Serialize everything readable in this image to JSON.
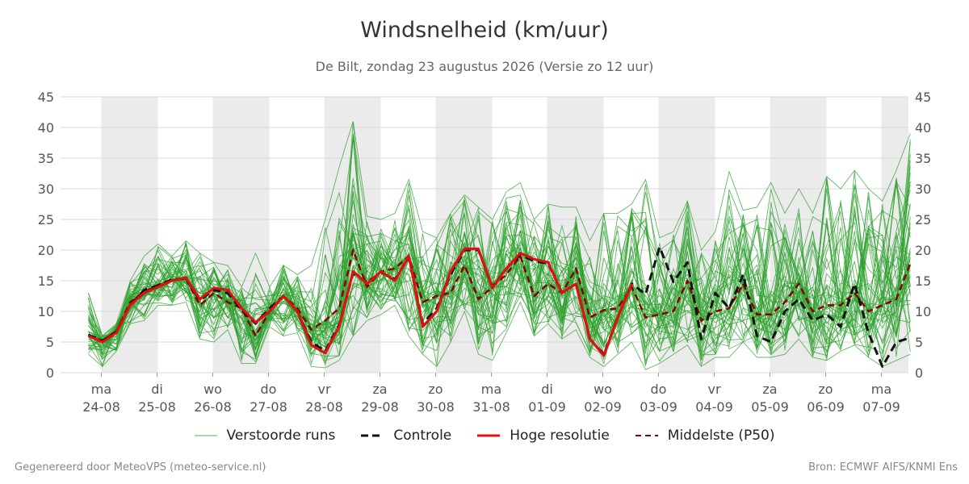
{
  "header": {
    "title": "Windsnelheid (km/uur)",
    "subtitle": "De Bilt, zondag 23 augustus 2026 (Versie zo 12 uur)"
  },
  "footer": {
    "left": "Gegenereerd door MeteoVPS (meteo-service.nl)",
    "right": "Bron: ECMWF AIFS/KNMI Ens"
  },
  "legend": [
    {
      "label": "Verstoorde runs",
      "style": "thin-green"
    },
    {
      "label": "Controle",
      "style": "black-dashed"
    },
    {
      "label": "Hoge resolutie",
      "style": "red-solid"
    },
    {
      "label": "Middelste (P50)",
      "style": "darkred-dashed"
    }
  ],
  "colors": {
    "ensemble": "#2ca02c",
    "control": "#111111",
    "hires": "#dd1111",
    "median": "#8b0000",
    "shade": "#ebebeb",
    "grid": "#d9d9d9"
  },
  "chart_data": {
    "type": "line",
    "x_unit": "6-hourly steps from 23-08 18:00",
    "ylim": [
      0,
      45
    ],
    "yticks": [
      0,
      5,
      10,
      15,
      20,
      25,
      30,
      35,
      40,
      45
    ],
    "day_labels": [
      {
        "day": "ma",
        "date": "24-08"
      },
      {
        "day": "di",
        "date": "25-08"
      },
      {
        "day": "wo",
        "date": "26-08"
      },
      {
        "day": "do",
        "date": "27-08"
      },
      {
        "day": "vr",
        "date": "28-08"
      },
      {
        "day": "za",
        "date": "29-08"
      },
      {
        "day": "zo",
        "date": "30-08"
      },
      {
        "day": "ma",
        "date": "31-08"
      },
      {
        "day": "di",
        "date": "01-09"
      },
      {
        "day": "wo",
        "date": "02-09"
      },
      {
        "day": "do",
        "date": "03-09"
      },
      {
        "day": "vr",
        "date": "04-09"
      },
      {
        "day": "za",
        "date": "05-09"
      },
      {
        "day": "zo",
        "date": "06-09"
      },
      {
        "day": "ma",
        "date": "07-09"
      }
    ],
    "series": [
      {
        "name": "Hoge resolutie",
        "values": [
          6.0,
          5.0,
          6.5,
          11.0,
          13.0,
          14.0,
          15.0,
          15.5,
          12.0,
          13.8,
          13.5,
          10.5,
          8.2,
          10.0,
          12.5,
          10.0,
          4.5,
          3.2,
          7.5,
          16.5,
          14.5,
          16.5,
          15.0,
          19.0,
          7.5,
          10.0,
          16.5,
          20.2,
          20.2,
          13.8,
          17.0,
          19.5,
          18.5,
          18.0,
          13.0,
          14.5,
          5.5,
          2.8,
          9.0,
          14.5
        ]
      },
      {
        "name": "Controle",
        "values": [
          6.2,
          5.2,
          6.7,
          11.0,
          13.5,
          14.2,
          15.2,
          15.3,
          11.8,
          13.5,
          13.0,
          10.2,
          8.0,
          10.5,
          12.5,
          10.0,
          5.0,
          3.5,
          7.8,
          16.2,
          14.7,
          16.4,
          15.2,
          18.8,
          8.0,
          10.5,
          16.0,
          20.0,
          20.0,
          14.0,
          17.0,
          19.2,
          18.2,
          17.8,
          13.0,
          14.5,
          5.5,
          3.0,
          9.0,
          14.5,
          12.8,
          20.5,
          14.8,
          18.0,
          5.5,
          13.0,
          10.5,
          16.0,
          6.0,
          5.0,
          10.0,
          12.0,
          8.5,
          9.5,
          7.5,
          14.5,
          6.5,
          1.0,
          5.0,
          5.7
        ]
      },
      {
        "name": "Middelste (P50)",
        "values": [
          6.2,
          5.2,
          6.7,
          11.5,
          13.2,
          14.3,
          15.2,
          15.3,
          11.0,
          13.0,
          11.5,
          10.5,
          6.0,
          10.0,
          12.5,
          10.5,
          7.0,
          8.5,
          10.5,
          20.0,
          14.0,
          16.5,
          17.0,
          19.0,
          11.5,
          12.5,
          13.0,
          17.5,
          12.0,
          14.0,
          16.0,
          19.0,
          12.5,
          14.5,
          13.0,
          17.0,
          9.0,
          10.2,
          10.5,
          14.0,
          9.0,
          9.5,
          10.0,
          15.0,
          8.5,
          10.0,
          10.5,
          14.5,
          9.5,
          9.5,
          11.5,
          14.5,
          10.0,
          11.0,
          11.0,
          13.0,
          10.0,
          11.0,
          12.0,
          17.8
        ]
      }
    ],
    "ensemble": {
      "members": 50,
      "min": [
        3.0,
        1.0,
        3.5,
        8.0,
        8.5,
        11.0,
        11.0,
        11.5,
        5.5,
        5.0,
        7.0,
        1.5,
        1.5,
        7.5,
        6.0,
        6.5,
        1.0,
        0.8,
        2.0,
        6.0,
        8.5,
        9.5,
        11.0,
        6.0,
        3.0,
        1.0,
        5.0,
        10.0,
        3.0,
        2.0,
        6.5,
        11.5,
        6.0,
        8.0,
        5.5,
        7.0,
        2.5,
        1.0,
        3.0,
        5.0,
        0.5,
        1.5,
        3.0,
        4.5,
        1.0,
        2.5,
        2.5,
        5.0,
        2.5,
        2.5,
        3.0,
        5.5,
        2.5,
        2.0,
        3.5,
        4.5,
        2.5,
        1.0,
        2.0,
        3.0
      ],
      "max": [
        13.0,
        6.0,
        8.0,
        15.0,
        19.0,
        21.0,
        19.0,
        21.5,
        19.5,
        18.0,
        17.5,
        14.0,
        19.5,
        14.0,
        17.5,
        16.0,
        17.5,
        25.0,
        33.5,
        41.0,
        25.5,
        25.0,
        26.0,
        31.5,
        23.0,
        22.0,
        26.0,
        29.0,
        27.0,
        25.0,
        29.5,
        31.0,
        25.0,
        27.5,
        27.0,
        27.0,
        21.5,
        26.0,
        26.0,
        27.5,
        31.5,
        22.0,
        23.0,
        28.0,
        20.0,
        23.0,
        32.8,
        26.5,
        27.0,
        31.0,
        26.0,
        30.0,
        26.0,
        32.0,
        30.0,
        33.0,
        30.0,
        28.0,
        33.0,
        39.0
      ]
    }
  }
}
